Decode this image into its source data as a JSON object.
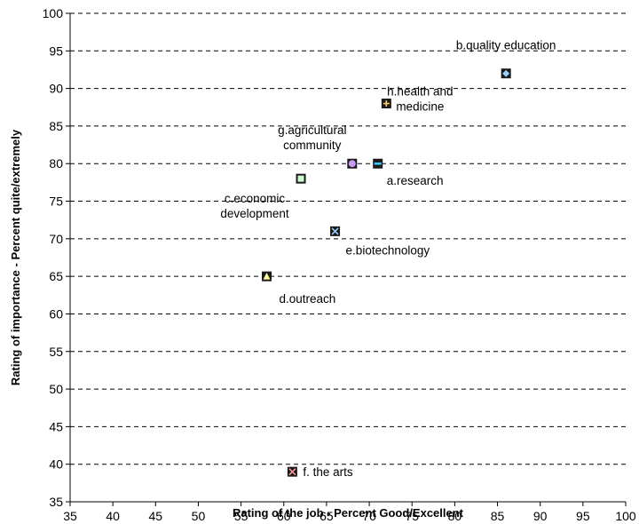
{
  "chart_data": {
    "type": "scatter",
    "xlabel": "Rating of the job - Percent Good/Excellent",
    "ylabel": "Rating of importance - Percent quite/extremely",
    "xlim": [
      35,
      100
    ],
    "ylim": [
      35,
      100
    ],
    "xticks": [
      "35",
      "40",
      "45",
      "50",
      "55",
      "60",
      "65",
      "70",
      "75",
      "80",
      "85",
      "90",
      "95",
      "100"
    ],
    "yticks": [
      "35",
      "40",
      "45",
      "50",
      "55",
      "60",
      "65",
      "70",
      "75",
      "80",
      "85",
      "90",
      "95",
      "100"
    ],
    "grid": "horizontal dashed",
    "points": [
      {
        "label": "a.research",
        "x": 71,
        "y": 80,
        "marker": "dash",
        "color": "#33ccff"
      },
      {
        "label": "b.quality education",
        "x": 86,
        "y": 92,
        "marker": "diamond",
        "color": "#99ccff"
      },
      {
        "label": "c.economic development",
        "x": 62,
        "y": 78,
        "marker": "square",
        "color": "#ccffcc"
      },
      {
        "label": "d.outreach",
        "x": 58,
        "y": 65,
        "marker": "triangle",
        "color": "#ffff99"
      },
      {
        "label": "e.biotechnology",
        "x": 66,
        "y": 71,
        "marker": "x",
        "color": "#99ccff"
      },
      {
        "label": "f. the arts",
        "x": 61,
        "y": 39,
        "marker": "x",
        "color": "#ff9999"
      },
      {
        "label": "g.agricultural community",
        "x": 68,
        "y": 80,
        "marker": "circle",
        "color": "#cc99ff"
      },
      {
        "label": "h.health and medicine",
        "x": 72,
        "y": 88,
        "marker": "plus",
        "color": "#ffcc66"
      }
    ]
  }
}
